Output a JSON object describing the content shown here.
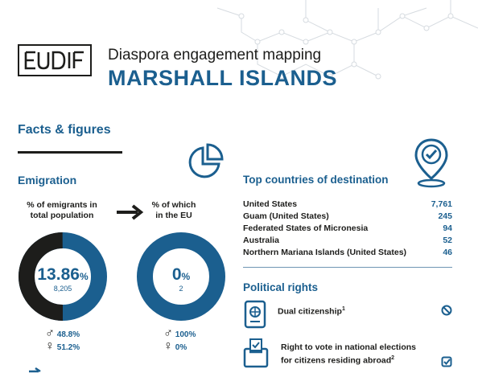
{
  "header": {
    "logo_text": "EUDIF",
    "title": "Diaspora engagement mapping",
    "country": "MARSHALL ISLANDS"
  },
  "facts_heading": "Facts & figures",
  "emigration": {
    "heading": "Emigration",
    "total": {
      "label_line1": "% of emigrants in",
      "label_line2": "total population",
      "percent_value": 13.86,
      "percent_number": "13.86",
      "percent_sign": "%",
      "count": "8,205",
      "male_pct": "48.8%",
      "female_pct": "51.2%"
    },
    "eu": {
      "label_line1": "% of which",
      "label_line2": "in the EU",
      "percent_value": 0,
      "percent_number": "0",
      "percent_sign": "%",
      "count": "2",
      "male_pct": "100%",
      "female_pct": "0%"
    }
  },
  "top_destinations": {
    "heading": "Top countries of destination",
    "rows": [
      {
        "country": "United States",
        "value": "7,761"
      },
      {
        "country": "Guam (United States)",
        "value": "245"
      },
      {
        "country": "Federated States of Micronesia",
        "value": "94"
      },
      {
        "country": "Australia",
        "value": "52"
      },
      {
        "country": "Northern Mariana Islands (United States)",
        "value": "46"
      }
    ]
  },
  "political_rights": {
    "heading": "Political rights",
    "dual_citizenship": {
      "label": "Dual citizenship",
      "footnote": "1",
      "status": "no"
    },
    "vote_abroad": {
      "line1": "Right to vote in national elections",
      "line2": "for citizens residing abroad",
      "footnote": "2",
      "status": "yes"
    }
  },
  "colors": {
    "accent": "#1b5f8f",
    "dark": "#1d1d1b"
  },
  "icons": [
    "pie-chart-icon",
    "location-check-icon",
    "passport-icon",
    "ballot-box-icon",
    "no-icon",
    "check-box-icon",
    "arrow-right-icon",
    "male-icon",
    "female-icon"
  ]
}
